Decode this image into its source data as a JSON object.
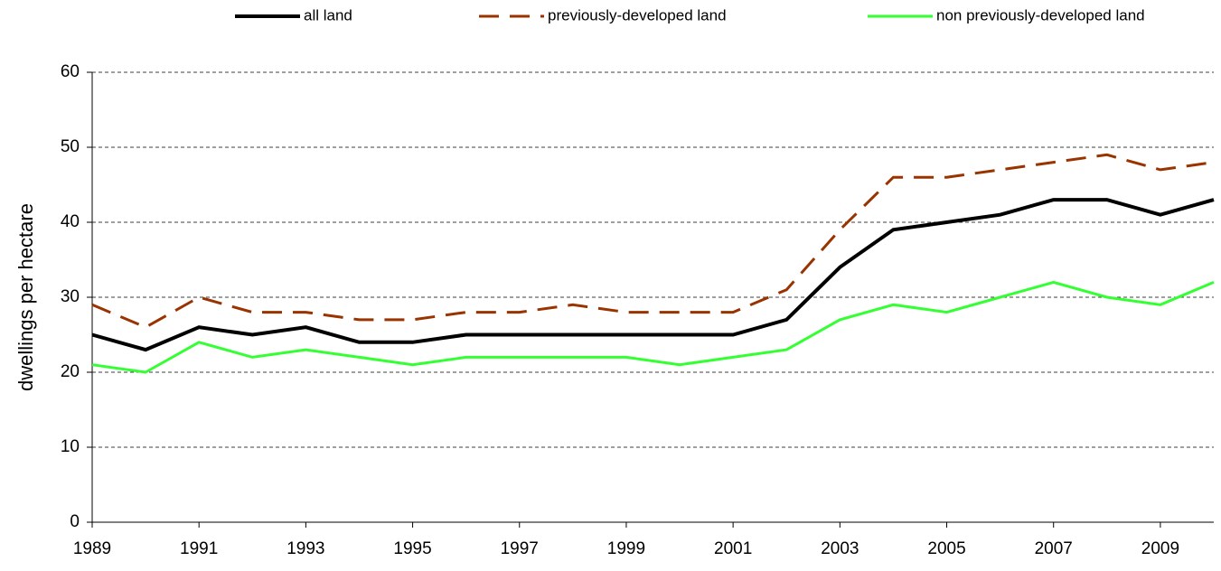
{
  "chart_data": {
    "type": "line",
    "y_label": "dwellings per hectare",
    "x": [
      1989,
      1990,
      1991,
      1992,
      1993,
      1994,
      1995,
      1996,
      1997,
      1998,
      1999,
      2000,
      2001,
      2002,
      2003,
      2004,
      2005,
      2006,
      2007,
      2008,
      2009,
      2010
    ],
    "xlim": [
      1989,
      2010
    ],
    "xticks": [
      1989,
      1991,
      1993,
      1995,
      1997,
      1999,
      2001,
      2003,
      2005,
      2007,
      2009
    ],
    "ylim": [
      0,
      60
    ],
    "yticks": [
      0,
      10,
      20,
      30,
      40,
      50,
      60
    ],
    "grid": true,
    "legend": "top",
    "series": [
      {
        "name": "all land",
        "color": "#000000",
        "dash": "solid",
        "values": [
          25,
          23,
          26,
          25,
          26,
          24,
          24,
          25,
          25,
          25,
          25,
          25,
          25,
          27,
          34,
          39,
          40,
          41,
          43,
          43,
          41,
          43
        ]
      },
      {
        "name": "previously-developed land",
        "color": "#993300",
        "dash": "dashed",
        "values": [
          29,
          26,
          30,
          28,
          28,
          27,
          27,
          28,
          28,
          29,
          28,
          28,
          28,
          31,
          39,
          46,
          46,
          47,
          48,
          49,
          47,
          48
        ]
      },
      {
        "name": "non previously-developed land",
        "color": "#33ff33",
        "dash": "solid",
        "values": [
          21,
          20,
          24,
          22,
          23,
          22,
          21,
          22,
          22,
          22,
          22,
          21,
          22,
          23,
          27,
          29,
          28,
          30,
          32,
          30,
          29,
          32
        ]
      }
    ]
  }
}
